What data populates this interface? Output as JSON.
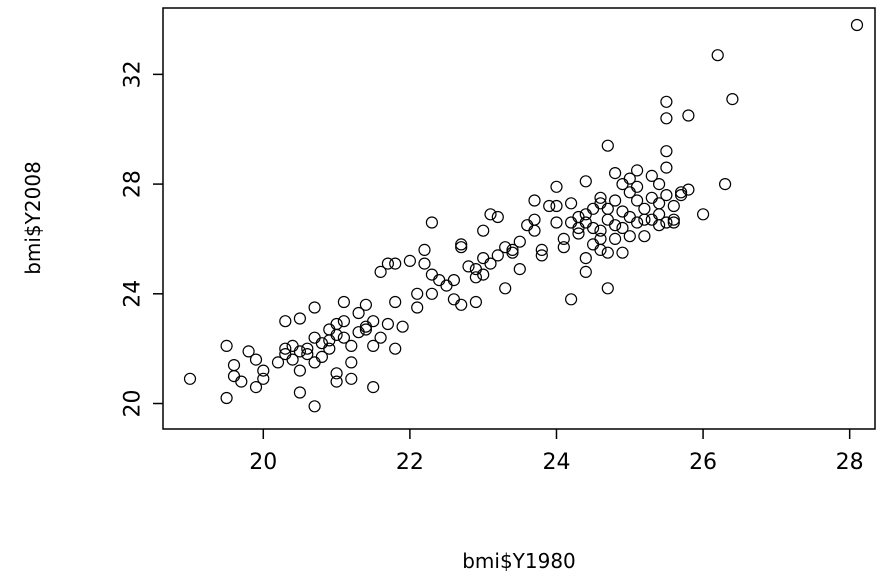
{
  "chart_data": {
    "type": "scatter",
    "title": "",
    "xlabel": "bmi$Y1980",
    "ylabel": "bmi$Y2008",
    "xlim": [
      19.0,
      28.1
    ],
    "ylim": [
      19.8,
      33.8
    ],
    "xticks": [
      20,
      22,
      24,
      26,
      28
    ],
    "yticks": [
      20,
      24,
      28,
      32
    ],
    "grid": false,
    "marker": "open-circle",
    "colors": {
      "points": "#000000",
      "axes": "#000000",
      "background": "#ffffff"
    },
    "points": [
      [
        19.0,
        20.9
      ],
      [
        19.5,
        20.2
      ],
      [
        19.5,
        22.1
      ],
      [
        19.6,
        21.0
      ],
      [
        19.6,
        21.4
      ],
      [
        19.7,
        20.8
      ],
      [
        19.8,
        21.9
      ],
      [
        19.9,
        20.6
      ],
      [
        19.9,
        21.6
      ],
      [
        20.0,
        20.9
      ],
      [
        20.0,
        21.2
      ],
      [
        20.2,
        21.5
      ],
      [
        20.3,
        21.8
      ],
      [
        20.3,
        22.0
      ],
      [
        20.4,
        21.6
      ],
      [
        20.4,
        22.1
      ],
      [
        20.5,
        21.9
      ],
      [
        20.5,
        23.1
      ],
      [
        20.3,
        23.0
      ],
      [
        20.5,
        21.2
      ],
      [
        20.5,
        20.4
      ],
      [
        20.6,
        21.8
      ],
      [
        20.6,
        22.0
      ],
      [
        20.7,
        21.5
      ],
      [
        20.7,
        22.4
      ],
      [
        20.7,
        23.5
      ],
      [
        20.7,
        19.9
      ],
      [
        20.8,
        21.7
      ],
      [
        20.8,
        22.2
      ],
      [
        20.9,
        22.7
      ],
      [
        20.9,
        22.0
      ],
      [
        21.0,
        22.5
      ],
      [
        21.0,
        21.1
      ],
      [
        21.0,
        20.8
      ],
      [
        21.0,
        22.9
      ],
      [
        21.1,
        23.0
      ],
      [
        21.1,
        22.4
      ],
      [
        21.1,
        23.7
      ],
      [
        21.2,
        21.5
      ],
      [
        21.2,
        22.1
      ],
      [
        21.2,
        20.9
      ],
      [
        21.3,
        22.6
      ],
      [
        21.3,
        23.3
      ],
      [
        21.4,
        22.8
      ],
      [
        21.4,
        23.6
      ],
      [
        21.5,
        22.1
      ],
      [
        21.5,
        23.0
      ],
      [
        21.5,
        20.6
      ],
      [
        21.6,
        22.4
      ],
      [
        21.6,
        24.8
      ],
      [
        21.7,
        22.9
      ],
      [
        21.7,
        25.1
      ],
      [
        21.8,
        23.7
      ],
      [
        21.8,
        22.0
      ],
      [
        21.9,
        22.8
      ],
      [
        21.8,
        25.1
      ],
      [
        22.0,
        25.2
      ],
      [
        22.1,
        23.5
      ],
      [
        22.1,
        24.0
      ],
      [
        22.2,
        25.6
      ],
      [
        22.2,
        25.1
      ],
      [
        22.3,
        24.7
      ],
      [
        22.3,
        24.0
      ],
      [
        22.3,
        26.6
      ],
      [
        22.4,
        24.5
      ],
      [
        22.5,
        24.3
      ],
      [
        22.6,
        24.5
      ],
      [
        22.6,
        23.8
      ],
      [
        22.7,
        25.7
      ],
      [
        22.7,
        25.8
      ],
      [
        22.7,
        23.6
      ],
      [
        22.8,
        25.0
      ],
      [
        22.9,
        24.9
      ],
      [
        22.9,
        23.7
      ],
      [
        22.9,
        24.6
      ],
      [
        23.0,
        24.7
      ],
      [
        23.0,
        25.3
      ],
      [
        23.0,
        26.3
      ],
      [
        23.1,
        25.1
      ],
      [
        23.1,
        26.9
      ],
      [
        23.2,
        25.4
      ],
      [
        23.2,
        26.8
      ],
      [
        23.3,
        24.2
      ],
      [
        23.3,
        25.7
      ],
      [
        23.4,
        25.5
      ],
      [
        23.5,
        25.9
      ],
      [
        23.5,
        24.9
      ],
      [
        23.6,
        26.5
      ],
      [
        23.7,
        26.7
      ],
      [
        23.7,
        26.3
      ],
      [
        23.7,
        27.4
      ],
      [
        23.8,
        25.4
      ],
      [
        23.8,
        25.6
      ],
      [
        23.9,
        27.2
      ],
      [
        24.0,
        27.2
      ],
      [
        24.0,
        26.6
      ],
      [
        24.0,
        27.9
      ],
      [
        24.1,
        25.7
      ],
      [
        24.1,
        26.0
      ],
      [
        24.2,
        27.3
      ],
      [
        24.2,
        23.8
      ],
      [
        24.3,
        26.4
      ],
      [
        24.3,
        26.2
      ],
      [
        24.3,
        26.8
      ],
      [
        24.4,
        25.3
      ],
      [
        24.4,
        26.6
      ],
      [
        24.4,
        24.8
      ],
      [
        24.4,
        26.9
      ],
      [
        24.5,
        27.1
      ],
      [
        24.5,
        26.4
      ],
      [
        24.5,
        25.8
      ],
      [
        24.6,
        27.5
      ],
      [
        24.6,
        27.3
      ],
      [
        24.6,
        26.3
      ],
      [
        24.6,
        25.6
      ],
      [
        24.6,
        26.0
      ],
      [
        24.7,
        29.4
      ],
      [
        24.7,
        27.1
      ],
      [
        24.7,
        26.7
      ],
      [
        24.7,
        25.5
      ],
      [
        24.7,
        24.2
      ],
      [
        24.8,
        28.4
      ],
      [
        24.8,
        27.4
      ],
      [
        24.8,
        26.5
      ],
      [
        24.8,
        26.0
      ],
      [
        24.9,
        28.0
      ],
      [
        24.9,
        27.0
      ],
      [
        24.9,
        25.5
      ],
      [
        25.0,
        28.2
      ],
      [
        25.0,
        27.7
      ],
      [
        25.0,
        26.8
      ],
      [
        25.0,
        26.1
      ],
      [
        25.1,
        28.5
      ],
      [
        25.1,
        27.4
      ],
      [
        25.1,
        26.6
      ],
      [
        25.2,
        27.1
      ],
      [
        25.2,
        26.7
      ],
      [
        25.3,
        28.3
      ],
      [
        25.3,
        27.5
      ],
      [
        25.3,
        26.7
      ],
      [
        25.4,
        28.0
      ],
      [
        25.4,
        27.3
      ],
      [
        25.4,
        26.5
      ],
      [
        25.4,
        26.9
      ],
      [
        25.5,
        31.0
      ],
      [
        25.5,
        30.4
      ],
      [
        25.5,
        28.6
      ],
      [
        25.5,
        27.6
      ],
      [
        25.5,
        26.6
      ],
      [
        25.5,
        29.2
      ],
      [
        25.6,
        27.2
      ],
      [
        25.6,
        26.6
      ],
      [
        25.7,
        27.6
      ],
      [
        25.7,
        27.7
      ],
      [
        25.8,
        30.5
      ],
      [
        25.8,
        27.8
      ],
      [
        26.0,
        26.9
      ],
      [
        26.2,
        32.7
      ],
      [
        26.3,
        28.0
      ],
      [
        26.4,
        31.1
      ],
      [
        28.1,
        33.8
      ],
      [
        24.4,
        28.1
      ],
      [
        24.2,
        26.6
      ],
      [
        25.2,
        26.1
      ],
      [
        23.4,
        25.6
      ],
      [
        21.4,
        22.7
      ],
      [
        20.9,
        22.3
      ],
      [
        24.9,
        26.4
      ],
      [
        25.1,
        27.9
      ],
      [
        25.6,
        26.7
      ]
    ]
  }
}
